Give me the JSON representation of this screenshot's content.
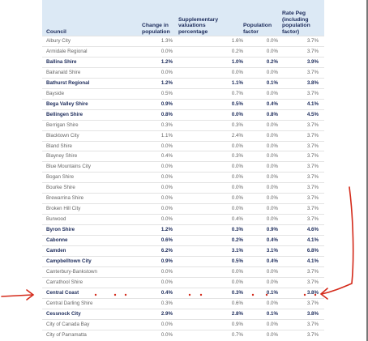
{
  "table": {
    "header": [
      "Council",
      "Change in population",
      "Supplementary valuations percentage",
      "Population factor",
      "Rate Peg (including population factor)"
    ],
    "rows": [
      {
        "cells": [
          "Albury City",
          "1.3%",
          "1.6%",
          "0.0%",
          "3.7%"
        ]
      },
      {
        "cells": [
          "Armidale Regional",
          "0.0%",
          "0.2%",
          "0.0%",
          "3.7%"
        ]
      },
      {
        "cells": [
          "Ballina Shire",
          "1.2%",
          "1.0%",
          "0.2%",
          "3.9%"
        ],
        "bold": true
      },
      {
        "cells": [
          "Balranald Shire",
          "0.0%",
          "0.0%",
          "0.0%",
          "3.7%"
        ]
      },
      {
        "cells": [
          "Bathurst Regional",
          "1.2%",
          "1.1%",
          "0.1%",
          "3.8%"
        ],
        "bold": true
      },
      {
        "cells": [
          "Bayside",
          "0.5%",
          "0.7%",
          "0.0%",
          "3.7%"
        ]
      },
      {
        "cells": [
          "Bega Valley Shire",
          "0.9%",
          "0.5%",
          "0.4%",
          "4.1%"
        ],
        "bold": true
      },
      {
        "cells": [
          "Bellingen Shire",
          "0.8%",
          "0.0%",
          "0.8%",
          "4.5%"
        ],
        "bold": true
      },
      {
        "cells": [
          "Berrigan Shire",
          "0.3%",
          "0.3%",
          "0.0%",
          "3.7%"
        ]
      },
      {
        "cells": [
          "Blacktown City",
          "1.1%",
          "2.4%",
          "0.0%",
          "3.7%"
        ]
      },
      {
        "cells": [
          "Bland Shire",
          "0.0%",
          "0.0%",
          "0.0%",
          "3.7%"
        ]
      },
      {
        "cells": [
          "Blayney Shire",
          "0.4%",
          "0.3%",
          "0.0%",
          "3.7%"
        ]
      },
      {
        "cells": [
          "Blue Mountains City",
          "0.0%",
          "0.0%",
          "0.0%",
          "3.7%"
        ]
      },
      {
        "cells": [
          "Bogan Shire",
          "0.0%",
          "0.0%",
          "0.0%",
          "3.7%"
        ]
      },
      {
        "cells": [
          "Bourke Shire",
          "0.0%",
          "0.0%",
          "0.0%",
          "3.7%"
        ]
      },
      {
        "cells": [
          "Brewarrina Shire",
          "0.0%",
          "0.0%",
          "0.0%",
          "3.7%"
        ]
      },
      {
        "cells": [
          "Broken Hill City",
          "0.0%",
          "0.0%",
          "0.0%",
          "3.7%"
        ]
      },
      {
        "cells": [
          "Burwood",
          "0.0%",
          "0.4%",
          "0.0%",
          "3.7%"
        ]
      },
      {
        "cells": [
          "Byron Shire",
          "1.2%",
          "0.3%",
          "0.9%",
          "4.6%"
        ],
        "bold": true
      },
      {
        "cells": [
          "Cabonne",
          "0.6%",
          "0.2%",
          "0.4%",
          "4.1%"
        ],
        "bold": true
      },
      {
        "cells": [
          "Camden",
          "6.2%",
          "3.1%",
          "3.1%",
          "6.8%"
        ],
        "bold": true
      },
      {
        "cells": [
          "Campbelltown City",
          "0.9%",
          "0.5%",
          "0.4%",
          "4.1%"
        ],
        "bold": true
      },
      {
        "cells": [
          "Canterbury-Bankstown",
          "0.0%",
          "0.0%",
          "0.0%",
          "3.7%"
        ]
      },
      {
        "cells": [
          "Carrathool Shire",
          "0.0%",
          "0.0%",
          "0.0%",
          "3.7%"
        ]
      },
      {
        "cells": [
          "Central Coast",
          "0.4%",
          "0.3%",
          "0.1%",
          "3.8%"
        ],
        "bold": true
      },
      {
        "cells": [
          "Central Darling Shire",
          "0.3%",
          "0.6%",
          "0.0%",
          "3.7%"
        ]
      },
      {
        "cells": [
          "Cessnock City",
          "2.9%",
          "2.8%",
          "0.1%",
          "3.8%"
        ],
        "bold": true
      },
      {
        "cells": [
          "City of Canada Bay",
          "0.0%",
          "0.9%",
          "0.0%",
          "3.7%"
        ]
      },
      {
        "cells": [
          "City of Parramatta",
          "0.0%",
          "0.7%",
          "0.0%",
          "3.7%"
        ]
      }
    ]
  }
}
